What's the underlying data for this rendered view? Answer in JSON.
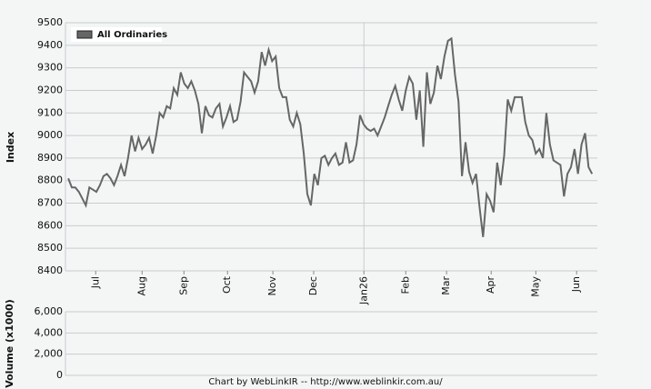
{
  "footer": "Chart by WebLinkIR -- http://www.weblinkir.com.au/",
  "chart_data": [
    {
      "type": "line",
      "ylabel": "Index",
      "series": [
        {
          "name": "All Ordinaries",
          "color": "#666666",
          "values": [
            8810,
            8770,
            8770,
            8750,
            8720,
            8690,
            8770,
            8760,
            8750,
            8780,
            8820,
            8830,
            8810,
            8780,
            8820,
            8870,
            8820,
            8900,
            9000,
            8930,
            8990,
            8940,
            8960,
            8990,
            8920,
            9000,
            9100,
            9080,
            9130,
            9120,
            9210,
            9180,
            9280,
            9230,
            9210,
            9240,
            9200,
            9140,
            9010,
            9130,
            9090,
            9080,
            9120,
            9140,
            9040,
            9080,
            9130,
            9060,
            9070,
            9150,
            9280,
            9260,
            9240,
            9190,
            9240,
            9370,
            9310,
            9380,
            9330,
            9350,
            9210,
            9170,
            9170,
            9070,
            9040,
            9100,
            9050,
            8920,
            8740,
            8690,
            8830,
            8780,
            8900,
            8910,
            8870,
            8900,
            8920,
            8870,
            8880,
            8970,
            8880,
            8890,
            8960,
            9090,
            9050,
            9030,
            9020,
            9030,
            9000,
            9040,
            9080,
            9130,
            9180,
            9220,
            9160,
            9110,
            9200,
            9260,
            9230,
            9070,
            9200,
            8950,
            9280,
            9140,
            9190,
            9310,
            9250,
            9350,
            9420,
            9430,
            9270,
            9150,
            8820,
            8970,
            8840,
            8790,
            8830,
            8680,
            8550,
            8740,
            8710,
            8660,
            8880,
            8780,
            8910,
            9160,
            9110,
            9170,
            9170,
            9170,
            9060,
            9000,
            8980,
            8920,
            8940,
            8900,
            9100,
            8960,
            8890,
            8880,
            8870,
            8730,
            8830,
            8860,
            8940,
            8830,
            8960,
            9010,
            8860,
            8830
          ]
        }
      ],
      "xlim": [
        -0.8,
        150.5
      ],
      "xticks": [
        {
          "value": 7.8,
          "label": "Jul"
        },
        {
          "value": 21,
          "label": "Aug"
        },
        {
          "value": 32.9,
          "label": "Sep"
        },
        {
          "value": 45.3,
          "label": "Oct"
        },
        {
          "value": 58.2,
          "label": "Nov"
        },
        {
          "value": 69.8,
          "label": "Dec"
        },
        {
          "value": 84.1,
          "label": "Jan26"
        },
        {
          "value": 96,
          "label": "Feb"
        },
        {
          "value": 107.6,
          "label": "Mar"
        },
        {
          "value": 120.3,
          "label": "Apr"
        },
        {
          "value": 133,
          "label": "May"
        },
        {
          "value": 144.6,
          "label": "Jun"
        }
      ],
      "ylim": [
        8400,
        9500
      ],
      "yticks": [
        8400,
        8500,
        8600,
        8700,
        8800,
        8900,
        9000,
        9100,
        9200,
        9300,
        9400,
        9500
      ],
      "grid": true
    },
    {
      "type": "bar",
      "ylabel": "Volume (x1000)",
      "ylim": [
        0,
        6000
      ],
      "yticks": [
        0,
        {
          "value": 2000,
          "label": "2,000"
        },
        {
          "value": 4000,
          "label": "4,000"
        },
        {
          "value": 6000,
          "label": "6,000"
        }
      ],
      "grid": true
    }
  ]
}
